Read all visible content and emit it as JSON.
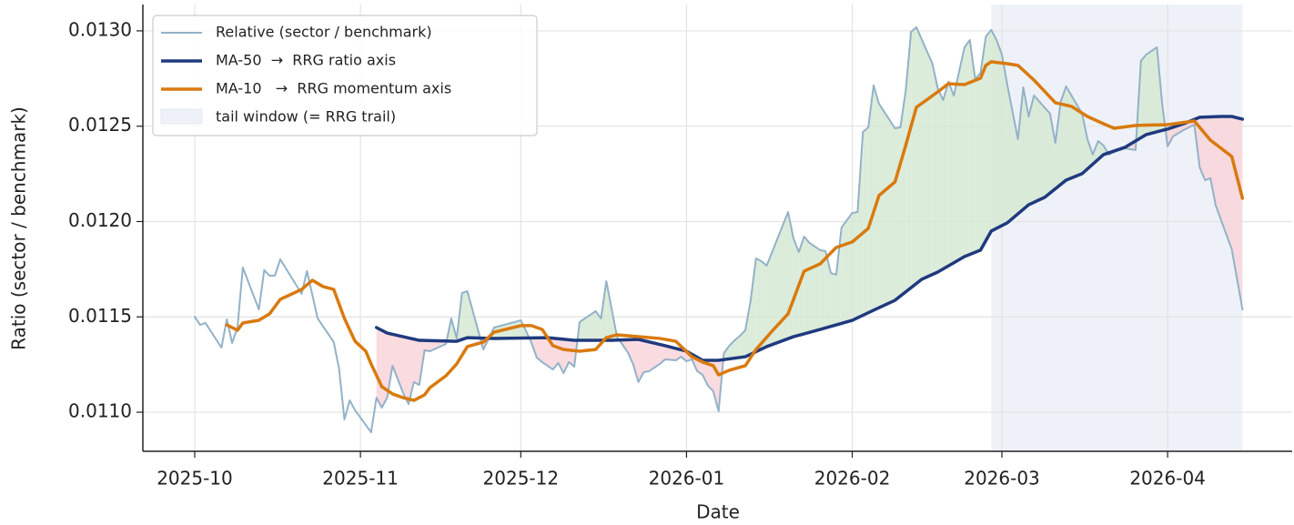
{
  "chart_data": {
    "type": "line",
    "xlabel": "Date",
    "ylabel": "Ratio (sector / benchmark)",
    "xlim": [
      -9.7,
      205.3
    ],
    "xticks": [
      {
        "value": 0,
        "label": "2025-10"
      },
      {
        "value": 31,
        "label": "2025-11"
      },
      {
        "value": 61,
        "label": "2025-12"
      },
      {
        "value": 92,
        "label": "2026-01"
      },
      {
        "value": 123,
        "label": "2026-02"
      },
      {
        "value": 151,
        "label": "2026-03"
      },
      {
        "value": 182,
        "label": "2026-04"
      }
    ],
    "ylim": [
      0.010795,
      0.013138
    ],
    "yticks": [
      {
        "value": 0.011,
        "label": "0.0110"
      },
      {
        "value": 0.0115,
        "label": "0.0115"
      },
      {
        "value": 0.012,
        "label": "0.0120"
      },
      {
        "value": 0.0125,
        "label": "0.0125"
      },
      {
        "value": 0.013,
        "label": "0.0130"
      }
    ],
    "grid": true,
    "legend": "upper left",
    "tail_window": {
      "name": "tail window (= RRG trail)",
      "x": [
        149,
        196
      ],
      "color": "#eef2f8"
    },
    "fill_colors": {
      "above": "#d6e9d3",
      "below": "#f8d5da"
    },
    "series": [
      {
        "name": "Relative (sector / benchmark)",
        "color": "#93b2c8",
        "width": 2,
        "x": [
          0,
          1,
          2,
          5,
          6,
          7,
          8,
          9,
          12,
          13,
          14,
          15,
          16,
          20,
          21,
          23,
          26,
          27,
          28,
          29,
          30,
          33,
          34,
          35,
          36,
          37,
          39,
          40,
          41,
          42,
          43,
          44,
          47,
          48,
          49,
          50,
          51,
          54,
          56,
          61,
          62,
          63,
          64,
          65,
          67,
          68,
          69,
          70,
          71,
          72,
          75,
          76,
          77,
          79,
          81,
          82,
          83,
          84,
          85,
          87,
          88,
          90,
          91,
          92,
          93,
          94,
          95,
          96,
          97,
          98,
          99,
          100,
          101,
          102,
          103,
          104,
          105,
          106,
          107,
          111,
          112,
          113,
          114,
          115,
          117,
          118,
          119,
          120,
          121,
          123,
          124,
          125,
          126,
          127,
          128,
          131,
          132,
          133,
          134,
          135,
          138,
          139,
          140,
          141,
          142,
          144,
          145,
          146,
          147,
          148,
          149,
          150,
          151,
          152,
          154,
          155,
          156,
          157,
          160,
          161,
          162,
          163,
          166,
          167,
          168,
          169,
          170,
          171,
          172,
          174,
          176,
          177,
          178,
          180,
          181,
          182,
          183,
          185,
          187,
          188,
          189,
          190,
          191,
          194,
          196
        ],
        "values": [
          0.011501,
          0.011458,
          0.011468,
          0.011339,
          0.011487,
          0.011363,
          0.011444,
          0.011759,
          0.011539,
          0.011745,
          0.011716,
          0.011716,
          0.011802,
          0.011621,
          0.01174,
          0.011492,
          0.011368,
          0.011229,
          0.010962,
          0.011062,
          0.01101,
          0.010895,
          0.011076,
          0.011024,
          0.011076,
          0.011244,
          0.0111,
          0.011043,
          0.011158,
          0.011143,
          0.011325,
          0.01132,
          0.011358,
          0.011492,
          0.011387,
          0.011625,
          0.011635,
          0.011329,
          0.011444,
          0.011482,
          0.011425,
          0.011363,
          0.011286,
          0.011263,
          0.011224,
          0.011258,
          0.011205,
          0.011263,
          0.011239,
          0.011473,
          0.01153,
          0.011492,
          0.011687,
          0.011396,
          0.011315,
          0.011253,
          0.011158,
          0.01121,
          0.011215,
          0.011253,
          0.011277,
          0.011272,
          0.011291,
          0.011267,
          0.011277,
          0.011215,
          0.011196,
          0.011139,
          0.01111,
          0.011005,
          0.01131,
          0.011349,
          0.011377,
          0.011401,
          0.01143,
          0.011587,
          0.011807,
          0.011792,
          0.011769,
          0.01205,
          0.011912,
          0.01184,
          0.011921,
          0.011888,
          0.01185,
          0.011845,
          0.01173,
          0.011721,
          0.011969,
          0.012045,
          0.01205,
          0.01247,
          0.012494,
          0.012714,
          0.012618,
          0.012489,
          0.012494,
          0.012685,
          0.012995,
          0.013019,
          0.012828,
          0.012699,
          0.012637,
          0.012733,
          0.012661,
          0.012914,
          0.012952,
          0.012747,
          0.01278,
          0.012971,
          0.013005,
          0.012952,
          0.012876,
          0.012718,
          0.012432,
          0.012704,
          0.012551,
          0.012661,
          0.012566,
          0.012413,
          0.012628,
          0.012709,
          0.012566,
          0.012432,
          0.012351,
          0.012422,
          0.012399,
          0.012351,
          0.012365,
          0.012384,
          0.012375,
          0.012842,
          0.012876,
          0.012914,
          0.012613,
          0.012394,
          0.012446,
          0.01248,
          0.012508,
          0.012284,
          0.012217,
          0.012227,
          0.012084,
          0.011854,
          0.011539
        ]
      },
      {
        "name": "MA-50  →  RRG ratio axis",
        "color": "#1f3a7e",
        "width": 3.5,
        "x": [
          34,
          36,
          39,
          42,
          49,
          51,
          56,
          66,
          71,
          78,
          83,
          88,
          92,
          95,
          98,
          103,
          107,
          112,
          117,
          123,
          127,
          131,
          136,
          139,
          144,
          147,
          149,
          152,
          156,
          159,
          163,
          166,
          170,
          174,
          178,
          182,
          185,
          188,
          192,
          194,
          196
        ],
        "values": [
          0.011444,
          0.011415,
          0.011396,
          0.011377,
          0.011372,
          0.011391,
          0.011387,
          0.011391,
          0.011377,
          0.011377,
          0.011382,
          0.011349,
          0.01132,
          0.011272,
          0.011272,
          0.011291,
          0.011344,
          0.011396,
          0.011434,
          0.011482,
          0.011535,
          0.011587,
          0.011697,
          0.011735,
          0.011816,
          0.01185,
          0.01195,
          0.011993,
          0.012088,
          0.012127,
          0.012217,
          0.012251,
          0.012351,
          0.012389,
          0.012456,
          0.012485,
          0.012513,
          0.012547,
          0.012551,
          0.012551,
          0.012537
        ]
      },
      {
        "name": "MA-10   →  RRG momentum axis",
        "color": "#d97a0e",
        "width": 3.5,
        "x": [
          6,
          8,
          9,
          12,
          14,
          16,
          20,
          22,
          24,
          26,
          28,
          30,
          32,
          33,
          35,
          37,
          39,
          41,
          43,
          44,
          47,
          49,
          51,
          54,
          56,
          61,
          63,
          65,
          67,
          69,
          72,
          75,
          77,
          79,
          83,
          87,
          90,
          93,
          95,
          97,
          98,
          100,
          103,
          105,
          108,
          111,
          114,
          117,
          118,
          120,
          123,
          126,
          128,
          131,
          133,
          135,
          139,
          141,
          144,
          147,
          148,
          149,
          152,
          154,
          157,
          161,
          164,
          167,
          170,
          172,
          176,
          182,
          187,
          190,
          194,
          196
        ],
        "values": [
          0.011458,
          0.01143,
          0.011468,
          0.011482,
          0.011516,
          0.011592,
          0.011644,
          0.011692,
          0.011659,
          0.011644,
          0.011492,
          0.011372,
          0.01132,
          0.011253,
          0.011134,
          0.011096,
          0.011076,
          0.011062,
          0.011091,
          0.011129,
          0.011191,
          0.011253,
          0.011344,
          0.011368,
          0.01142,
          0.011454,
          0.011454,
          0.011434,
          0.011349,
          0.011329,
          0.01132,
          0.011329,
          0.011391,
          0.011406,
          0.011396,
          0.011387,
          0.011372,
          0.011291,
          0.011263,
          0.011244,
          0.011196,
          0.01122,
          0.011244,
          0.011329,
          0.011425,
          0.011516,
          0.01174,
          0.011778,
          0.011807,
          0.011864,
          0.011893,
          0.011964,
          0.012136,
          0.012208,
          0.012399,
          0.012599,
          0.01268,
          0.012723,
          0.012718,
          0.012752,
          0.012819,
          0.012838,
          0.012828,
          0.012819,
          0.012742,
          0.012623,
          0.012604,
          0.012551,
          0.012513,
          0.012489,
          0.012504,
          0.012508,
          0.012527,
          0.012427,
          0.012341,
          0.012122
        ]
      }
    ]
  }
}
